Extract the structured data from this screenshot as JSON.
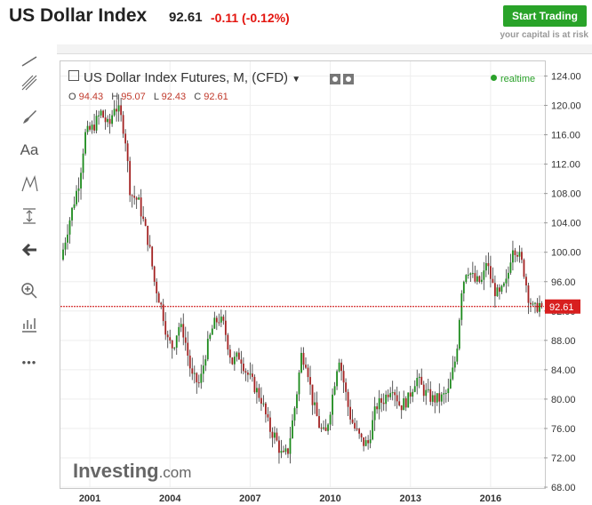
{
  "header": {
    "title": "US Dollar Index",
    "price": "92.61",
    "change": "-0.11 (-0.12%)",
    "cta_label": "Start Trading",
    "risk_note": "your capital is at risk"
  },
  "toolbar": {
    "icons": [
      "trend-line-icon",
      "pitchfork-icon",
      "brush-icon",
      "text-icon",
      "pattern-icon",
      "measure-icon",
      "back-arrow-icon",
      "zoom-icon",
      "chart-settings-icon",
      "more-icon"
    ],
    "text_tool_label": "Aa",
    "more_label": "•••"
  },
  "legend": {
    "instrument": "US Dollar Index Futures, M, (CFD)",
    "ohlc": {
      "o_label": "O",
      "o": "94.43",
      "h_label": "H",
      "h": "95.07",
      "l_label": "L",
      "l": "92.43",
      "c_label": "C",
      "c": "92.61"
    },
    "realtime": "realtime"
  },
  "brand": {
    "name": "Investing",
    "suffix": ".com"
  },
  "chart_data": {
    "type": "candlestick",
    "interval": "monthly",
    "x_ticks": [
      "2001",
      "2004",
      "2007",
      "2010",
      "2013",
      "2016"
    ],
    "y_ticks": [
      "124.00",
      "120.00",
      "116.00",
      "112.00",
      "108.00",
      "104.00",
      "100.00",
      "96.00",
      "92.00",
      "88.00",
      "84.00",
      "80.00",
      "76.00",
      "72.00",
      "68.00"
    ],
    "ylim": [
      68,
      126
    ],
    "xlim": [
      1999.9,
      2018.0
    ],
    "last_price_label": "92.61",
    "last_price": 92.61,
    "colors": {
      "up": "#1c8a1c",
      "down": "#a32222",
      "price_line": "#cc0000",
      "grid": "#eeeeee"
    },
    "path_points": [
      [
        2000.0,
        99
      ],
      [
        2000.3,
        104
      ],
      [
        2000.7,
        110
      ],
      [
        2000.9,
        116
      ],
      [
        2001.2,
        117
      ],
      [
        2001.5,
        119
      ],
      [
        2001.8,
        117
      ],
      [
        2002.0,
        120
      ],
      [
        2002.2,
        119
      ],
      [
        2002.4,
        116
      ],
      [
        2002.6,
        108
      ],
      [
        2002.9,
        107
      ],
      [
        2003.1,
        104
      ],
      [
        2003.3,
        101
      ],
      [
        2003.5,
        96
      ],
      [
        2003.8,
        92
      ],
      [
        2004.0,
        88
      ],
      [
        2004.2,
        87
      ],
      [
        2004.4,
        90
      ],
      [
        2004.6,
        89
      ],
      [
        2004.9,
        83
      ],
      [
        2005.2,
        82
      ],
      [
        2005.4,
        86
      ],
      [
        2005.7,
        90
      ],
      [
        2005.9,
        91
      ],
      [
        2006.1,
        90
      ],
      [
        2006.4,
        85
      ],
      [
        2006.7,
        86
      ],
      [
        2006.9,
        84
      ],
      [
        2007.2,
        82
      ],
      [
        2007.5,
        80
      ],
      [
        2007.8,
        76
      ],
      [
        2008.0,
        75
      ],
      [
        2008.3,
        72
      ],
      [
        2008.5,
        73
      ],
      [
        2008.8,
        80
      ],
      [
        2009.0,
        86
      ],
      [
        2009.2,
        85
      ],
      [
        2009.4,
        80
      ],
      [
        2009.7,
        76
      ],
      [
        2009.9,
        75
      ],
      [
        2010.1,
        79
      ],
      [
        2010.4,
        86
      ],
      [
        2010.5,
        84
      ],
      [
        2010.8,
        78
      ],
      [
        2011.0,
        76
      ],
      [
        2011.3,
        74
      ],
      [
        2011.5,
        74
      ],
      [
        2011.8,
        79
      ],
      [
        2012.1,
        80
      ],
      [
        2012.4,
        82
      ],
      [
        2012.7,
        79
      ],
      [
        2013.0,
        80
      ],
      [
        2013.3,
        83
      ],
      [
        2013.6,
        81
      ],
      [
        2013.9,
        80
      ],
      [
        2014.2,
        80
      ],
      [
        2014.5,
        81
      ],
      [
        2014.8,
        86
      ],
      [
        2015.0,
        95
      ],
      [
        2015.2,
        98
      ],
      [
        2015.5,
        96
      ],
      [
        2015.8,
        96
      ],
      [
        2015.9,
        99
      ],
      [
        2016.2,
        95
      ],
      [
        2016.4,
        94
      ],
      [
        2016.7,
        96
      ],
      [
        2016.9,
        101
      ],
      [
        2017.1,
        100
      ],
      [
        2017.3,
        98
      ],
      [
        2017.5,
        94
      ],
      [
        2017.7,
        92
      ],
      [
        2017.9,
        93
      ],
      [
        2018.0,
        92.61
      ]
    ]
  }
}
